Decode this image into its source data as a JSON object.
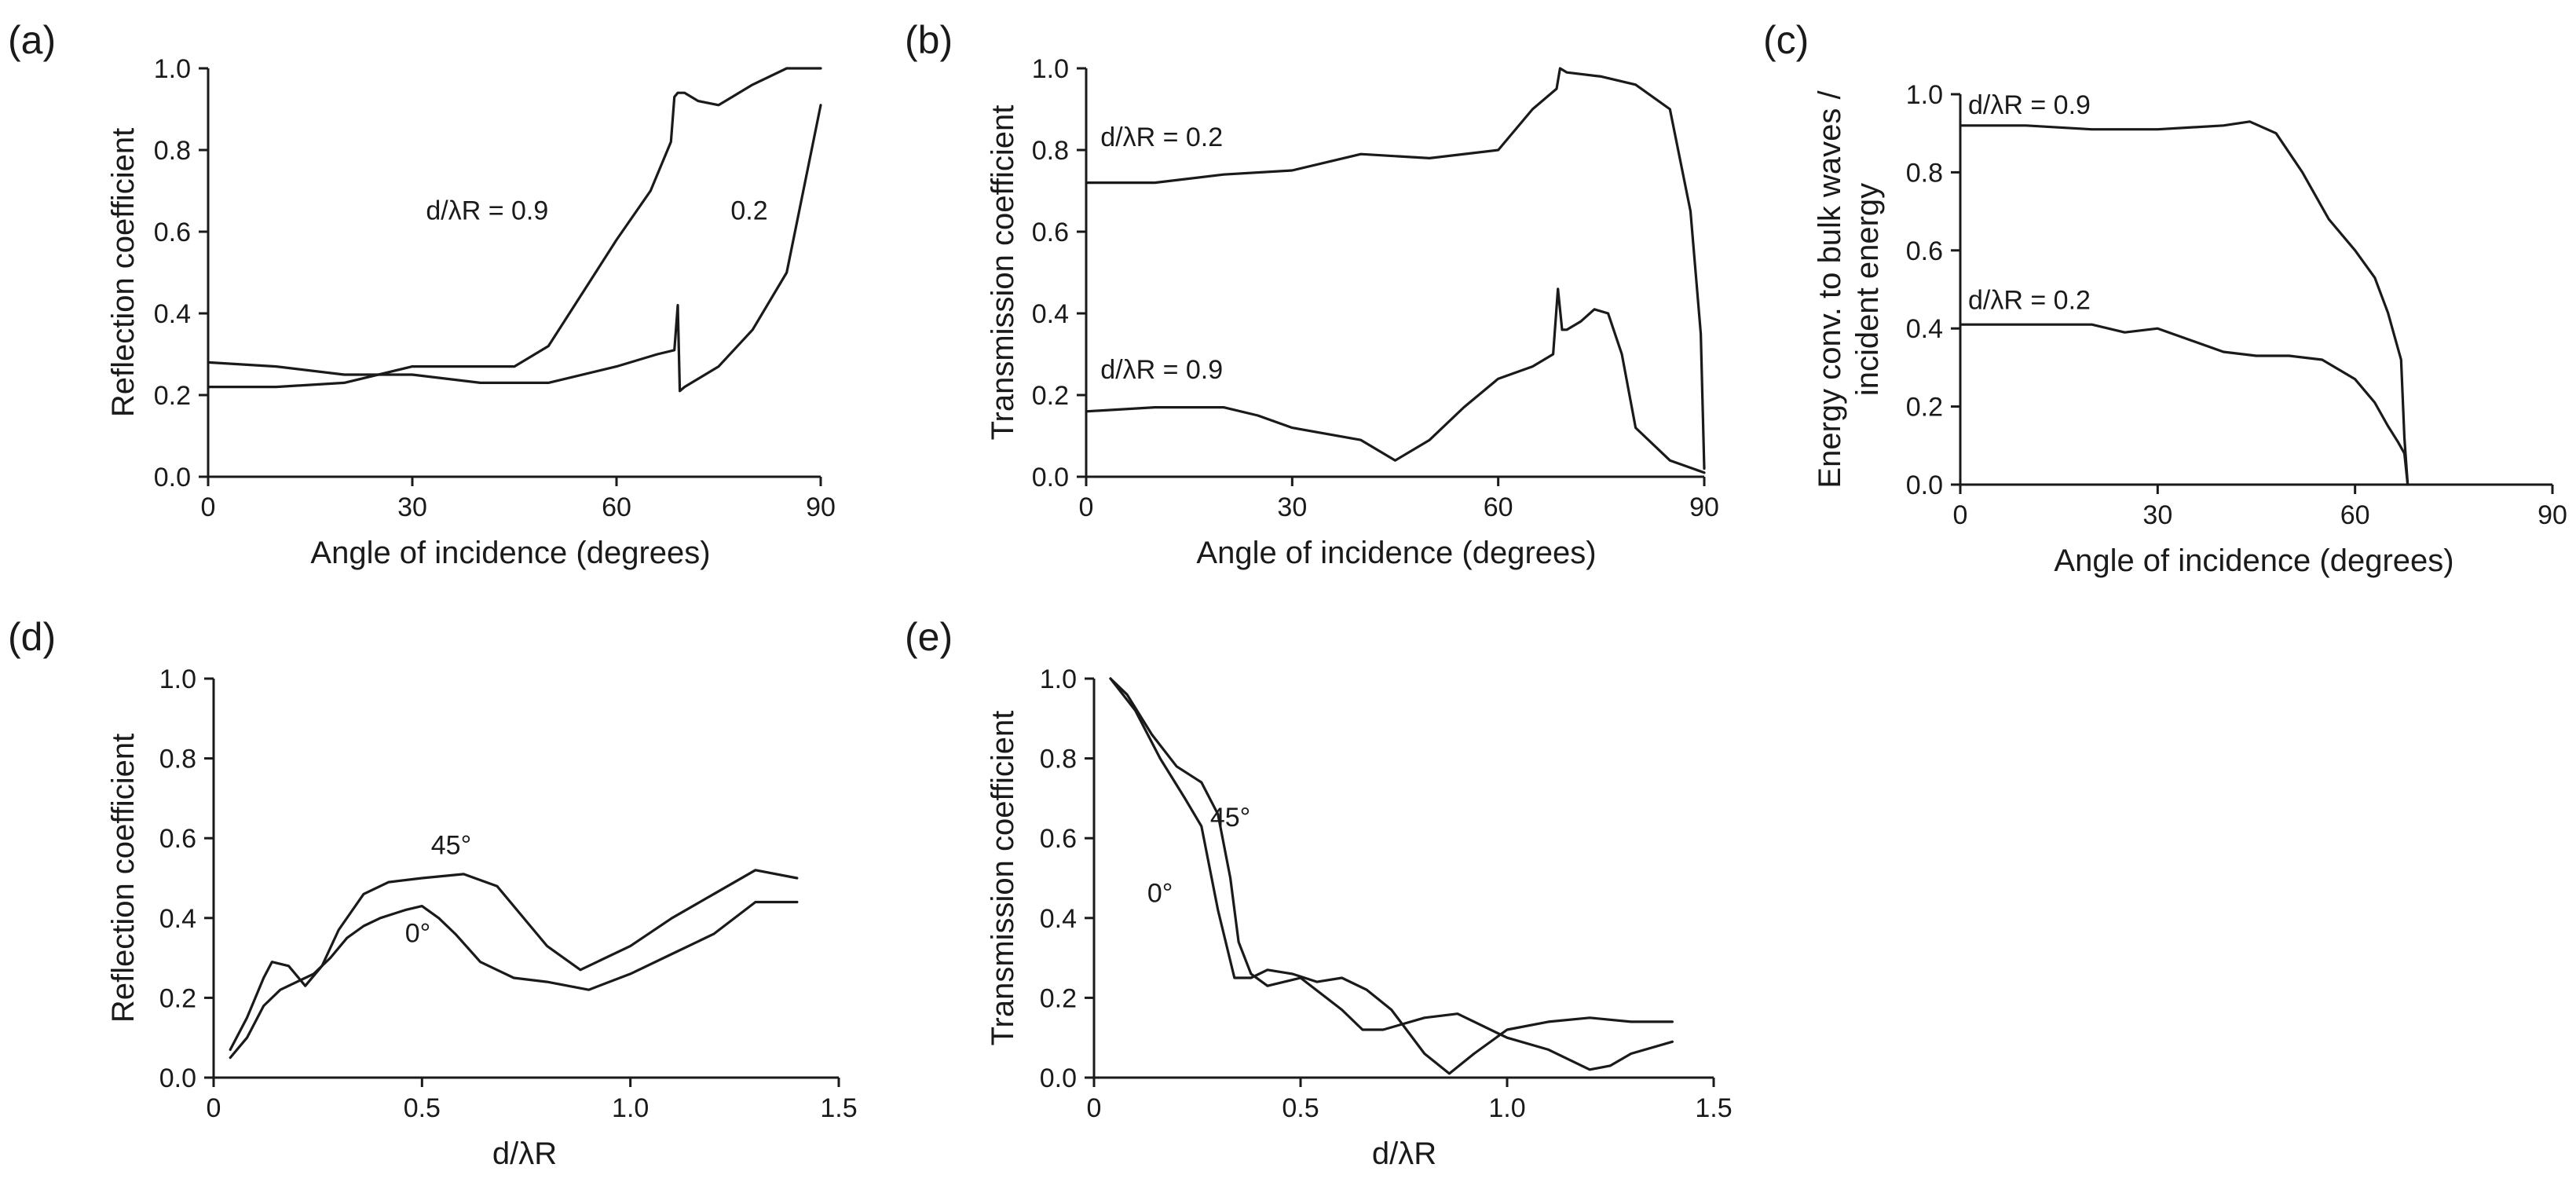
{
  "chart_data": [
    {
      "id": "a",
      "panel_label": "(a)",
      "type": "line",
      "title": "",
      "xlabel": "Angle of incidence (degrees)",
      "ylabel": "Reflection coefficient",
      "xlim": [
        0,
        90
      ],
      "ylim": [
        0,
        1
      ],
      "xticks": [
        "0",
        "30",
        "60",
        "90"
      ],
      "yticks": [
        "0.0",
        "0.2",
        "0.4",
        "0.6",
        "0.8",
        "1.0"
      ],
      "grid": false,
      "series": [
        {
          "name": "d/λR = 0.9",
          "x": [
            0,
            10,
            20,
            30,
            40,
            45,
            50,
            55,
            60,
            65,
            68,
            68.5,
            69,
            70,
            72,
            75,
            80,
            85,
            90
          ],
          "y": [
            0.22,
            0.22,
            0.23,
            0.27,
            0.27,
            0.27,
            0.32,
            0.45,
            0.58,
            0.7,
            0.82,
            0.93,
            0.94,
            0.94,
            0.92,
            0.91,
            0.96,
            1.0,
            1.0
          ]
        },
        {
          "name": "0.2",
          "x": [
            0,
            10,
            20,
            30,
            40,
            50,
            60,
            66,
            68.5,
            69,
            69.3,
            70,
            75,
            80,
            85,
            90
          ],
          "y": [
            0.28,
            0.27,
            0.25,
            0.25,
            0.23,
            0.23,
            0.27,
            0.3,
            0.31,
            0.42,
            0.21,
            0.22,
            0.27,
            0.36,
            0.5,
            0.91
          ]
        }
      ],
      "annotations": [
        {
          "text": "d/λR = 0.9",
          "x": 41,
          "y": 0.63
        },
        {
          "text": "0.2",
          "x": 79.5,
          "y": 0.63
        }
      ]
    },
    {
      "id": "b",
      "panel_label": "(b)",
      "type": "line",
      "title": "",
      "xlabel": "Angle of incidence (degrees)",
      "ylabel": "Transmission coefficient",
      "xlim": [
        0,
        90
      ],
      "ylim": [
        0,
        1
      ],
      "xticks": [
        "0",
        "30",
        "60",
        "90"
      ],
      "yticks": [
        "0.0",
        "0.2",
        "0.4",
        "0.6",
        "0.8",
        "1.0"
      ],
      "grid": false,
      "series": [
        {
          "name": "d/λR = 0.2",
          "x": [
            0,
            10,
            20,
            30,
            40,
            50,
            60,
            65,
            68.5,
            69,
            70,
            75,
            80,
            85,
            88,
            89.5,
            90
          ],
          "y": [
            0.72,
            0.72,
            0.74,
            0.75,
            0.79,
            0.78,
            0.8,
            0.9,
            0.95,
            1.0,
            0.99,
            0.98,
            0.96,
            0.9,
            0.65,
            0.35,
            0.02
          ]
        },
        {
          "name": "d/λR = 0.9",
          "x": [
            0,
            10,
            20,
            25,
            30,
            40,
            45,
            50,
            55,
            60,
            65,
            68,
            68.7,
            69.3,
            70,
            72,
            74,
            76,
            78,
            80,
            85,
            90
          ],
          "y": [
            0.16,
            0.17,
            0.17,
            0.15,
            0.12,
            0.09,
            0.04,
            0.09,
            0.17,
            0.24,
            0.27,
            0.3,
            0.46,
            0.36,
            0.36,
            0.38,
            0.41,
            0.4,
            0.3,
            0.12,
            0.04,
            0.01
          ]
        }
      ],
      "annotations": [
        {
          "text": "d/λR = 0.2",
          "x": 11,
          "y": 0.81
        },
        {
          "text": "d/λR = 0.9",
          "x": 11,
          "y": 0.24
        }
      ]
    },
    {
      "id": "c",
      "panel_label": "(c)",
      "type": "line",
      "title": "",
      "xlabel": "Angle of incidence (degrees)",
      "ylabel": "Energy conv. to bulk waves / incident energy",
      "ylabel_lines": [
        "Energy conv. to bulk waves /",
        "incident energy"
      ],
      "xlim": [
        0,
        90
      ],
      "ylim": [
        0,
        1
      ],
      "xticks": [
        "0",
        "30",
        "60",
        "90"
      ],
      "yticks": [
        "0.0",
        "0.2",
        "0.4",
        "0.6",
        "0.8",
        "1.0"
      ],
      "grid": false,
      "series": [
        {
          "name": "d/λR = 0.9",
          "x": [
            0,
            10,
            20,
            30,
            40,
            44,
            48,
            52,
            56,
            60,
            63,
            65,
            66,
            67,
            67.5,
            68
          ],
          "y": [
            0.92,
            0.92,
            0.91,
            0.91,
            0.92,
            0.93,
            0.9,
            0.8,
            0.68,
            0.6,
            0.53,
            0.44,
            0.38,
            0.32,
            0.12,
            0.0
          ]
        },
        {
          "name": "d/λR = 0.2",
          "x": [
            0,
            10,
            20,
            25,
            30,
            35,
            40,
            45,
            50,
            55,
            60,
            63,
            65,
            66.5,
            67.5,
            68
          ],
          "y": [
            0.41,
            0.41,
            0.41,
            0.39,
            0.4,
            0.37,
            0.34,
            0.33,
            0.33,
            0.32,
            0.27,
            0.21,
            0.15,
            0.11,
            0.08,
            0.0
          ]
        }
      ],
      "annotations": [
        {
          "text": "d/λR = 0.9",
          "x": 10.5,
          "y": 0.95
        },
        {
          "text": "d/λR = 0.2",
          "x": 10.5,
          "y": 0.45
        }
      ]
    },
    {
      "id": "d",
      "panel_label": "(d)",
      "type": "line",
      "title": "",
      "xlabel": "d/λR",
      "ylabel": "Reflection coefficient",
      "xlim": [
        0,
        1.5
      ],
      "ylim": [
        0,
        1
      ],
      "xticks": [
        "0",
        "0.5",
        "1.0",
        "1.5"
      ],
      "yticks": [
        "0.0",
        "0.2",
        "0.4",
        "0.6",
        "0.8",
        "1.0"
      ],
      "grid": false,
      "series": [
        {
          "name": "45°",
          "x": [
            0.04,
            0.08,
            0.12,
            0.14,
            0.18,
            0.22,
            0.26,
            0.3,
            0.36,
            0.42,
            0.5,
            0.6,
            0.68,
            0.76,
            0.8,
            0.88,
            1.0,
            1.1,
            1.2,
            1.3,
            1.4
          ],
          "y": [
            0.07,
            0.15,
            0.25,
            0.29,
            0.28,
            0.23,
            0.28,
            0.37,
            0.46,
            0.49,
            0.5,
            0.51,
            0.48,
            0.38,
            0.33,
            0.27,
            0.33,
            0.4,
            0.46,
            0.52,
            0.5
          ]
        },
        {
          "name": "0°",
          "x": [
            0.04,
            0.08,
            0.12,
            0.16,
            0.2,
            0.24,
            0.28,
            0.32,
            0.36,
            0.4,
            0.46,
            0.5,
            0.54,
            0.58,
            0.64,
            0.72,
            0.8,
            0.9,
            1.0,
            1.1,
            1.2,
            1.3,
            1.4
          ],
          "y": [
            0.05,
            0.1,
            0.18,
            0.22,
            0.24,
            0.26,
            0.3,
            0.35,
            0.38,
            0.4,
            0.42,
            0.43,
            0.4,
            0.36,
            0.29,
            0.25,
            0.24,
            0.22,
            0.26,
            0.31,
            0.36,
            0.44,
            0.44
          ]
        }
      ],
      "annotations": [
        {
          "text": "45°",
          "x": 0.57,
          "y": 0.56
        },
        {
          "text": "0°",
          "x": 0.49,
          "y": 0.34
        }
      ]
    },
    {
      "id": "e",
      "panel_label": "(e)",
      "type": "line",
      "title": "",
      "xlabel": "d/λR",
      "ylabel": "Transmission coefficient",
      "xlim": [
        0,
        1.5
      ],
      "ylim": [
        0,
        1
      ],
      "xticks": [
        "0",
        "0.5",
        "1.0",
        "1.5"
      ],
      "yticks": [
        "0.0",
        "0.2",
        "0.4",
        "0.6",
        "0.8",
        "1.0"
      ],
      "grid": false,
      "series": [
        {
          "name": "45°",
          "x": [
            0.04,
            0.08,
            0.14,
            0.2,
            0.26,
            0.3,
            0.33,
            0.35,
            0.38,
            0.42,
            0.5,
            0.6,
            0.65,
            0.7,
            0.8,
            0.88,
            1.0,
            1.1,
            1.2,
            1.25,
            1.3,
            1.4
          ],
          "y": [
            1.0,
            0.96,
            0.86,
            0.78,
            0.74,
            0.66,
            0.5,
            0.34,
            0.26,
            0.23,
            0.25,
            0.17,
            0.12,
            0.12,
            0.15,
            0.16,
            0.1,
            0.07,
            0.02,
            0.03,
            0.06,
            0.09
          ]
        },
        {
          "name": "0°",
          "x": [
            0.04,
            0.1,
            0.16,
            0.22,
            0.26,
            0.3,
            0.34,
            0.38,
            0.42,
            0.48,
            0.54,
            0.6,
            0.66,
            0.72,
            0.8,
            0.86,
            0.92,
            1.0,
            1.1,
            1.2,
            1.3,
            1.4
          ],
          "y": [
            1.0,
            0.92,
            0.8,
            0.7,
            0.63,
            0.42,
            0.25,
            0.25,
            0.27,
            0.26,
            0.24,
            0.25,
            0.22,
            0.17,
            0.06,
            0.01,
            0.06,
            0.12,
            0.14,
            0.15,
            0.14,
            0.14
          ]
        }
      ],
      "annotations": [
        {
          "text": "45°",
          "x": 0.33,
          "y": 0.63
        },
        {
          "text": "0°",
          "x": 0.16,
          "y": 0.44
        }
      ]
    }
  ]
}
